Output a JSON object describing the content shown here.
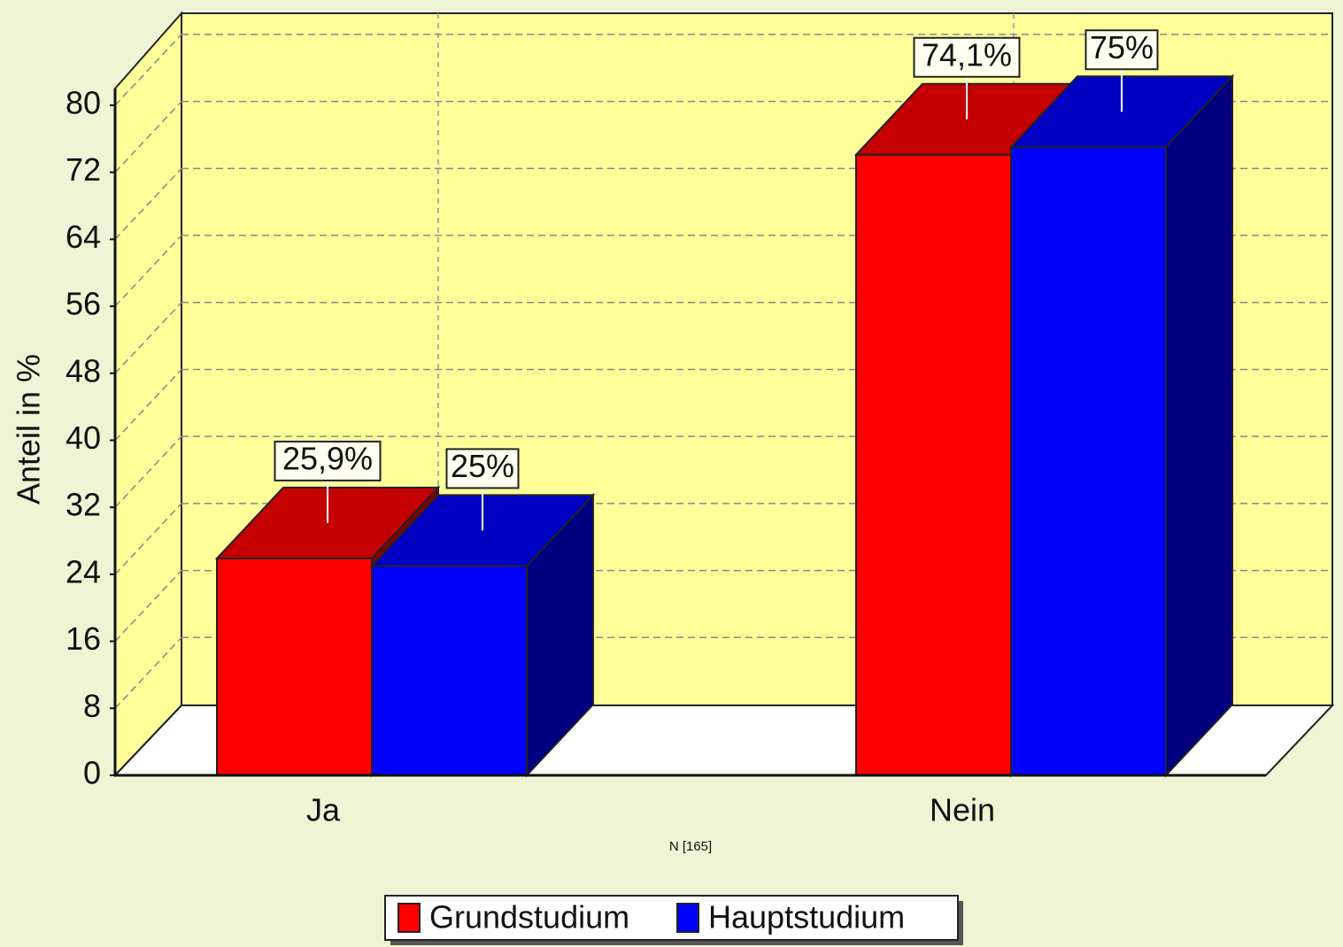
{
  "chart_data": {
    "type": "bar3d",
    "y_label": "Anteil in %",
    "annotation": "N [165]",
    "categories": [
      "Ja",
      "Nein"
    ],
    "series": [
      {
        "name": "Grundstudium",
        "color": "#ff0000",
        "top_color": "#c40000",
        "side_color": "#800000",
        "values": [
          25.9,
          74.1
        ],
        "value_labels": [
          "25,9%",
          "74,1%"
        ]
      },
      {
        "name": "Hauptstudium",
        "color": "#0000ff",
        "top_color": "#0000c4",
        "side_color": "#000080",
        "values": [
          25,
          75
        ],
        "value_labels": [
          "25%",
          "75%"
        ]
      }
    ],
    "ylim": [
      0,
      82
    ],
    "yticks": [
      0,
      8,
      16,
      24,
      32,
      40,
      48,
      56,
      64,
      72,
      80
    ],
    "grid": true,
    "legend": "bottom"
  }
}
